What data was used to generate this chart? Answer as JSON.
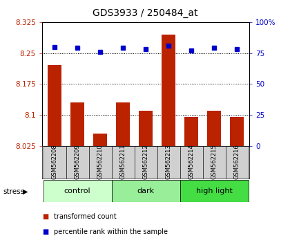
{
  "title": "GDS3933 / 250484_at",
  "samples": [
    "GSM562208",
    "GSM562209",
    "GSM562210",
    "GSM562211",
    "GSM562212",
    "GSM562213",
    "GSM562214",
    "GSM562215",
    "GSM562216"
  ],
  "red_values": [
    8.22,
    8.13,
    8.055,
    8.13,
    8.11,
    8.295,
    8.095,
    8.11,
    8.095
  ],
  "blue_values": [
    80,
    79,
    76,
    79,
    78,
    81,
    77,
    79,
    78
  ],
  "groups": [
    {
      "label": "control",
      "start": 0,
      "end": 3,
      "color": "#ccffcc"
    },
    {
      "label": "dark",
      "start": 3,
      "end": 6,
      "color": "#99ee99"
    },
    {
      "label": "high light",
      "start": 6,
      "end": 9,
      "color": "#44dd44"
    }
  ],
  "ylim_left": [
    8.025,
    8.325
  ],
  "ylim_right": [
    0,
    100
  ],
  "yticks_left": [
    8.025,
    8.1,
    8.175,
    8.25,
    8.325
  ],
  "yticks_right": [
    0,
    25,
    50,
    75,
    100
  ],
  "ytick_labels_left": [
    "8.025",
    "8.1",
    "8.175",
    "8.25",
    "8.325"
  ],
  "ytick_labels_right": [
    "0",
    "25",
    "50",
    "75",
    "100%"
  ],
  "dotted_lines": [
    8.25,
    8.175,
    8.1
  ],
  "bar_color": "#bb2200",
  "dot_color": "#0000cc",
  "bar_width": 0.6,
  "background_color": "#ffffff",
  "label_bg_color": "#d0d0d0",
  "stress_label": "stress",
  "legend_red": "transformed count",
  "legend_blue": "percentile rank within the sample"
}
